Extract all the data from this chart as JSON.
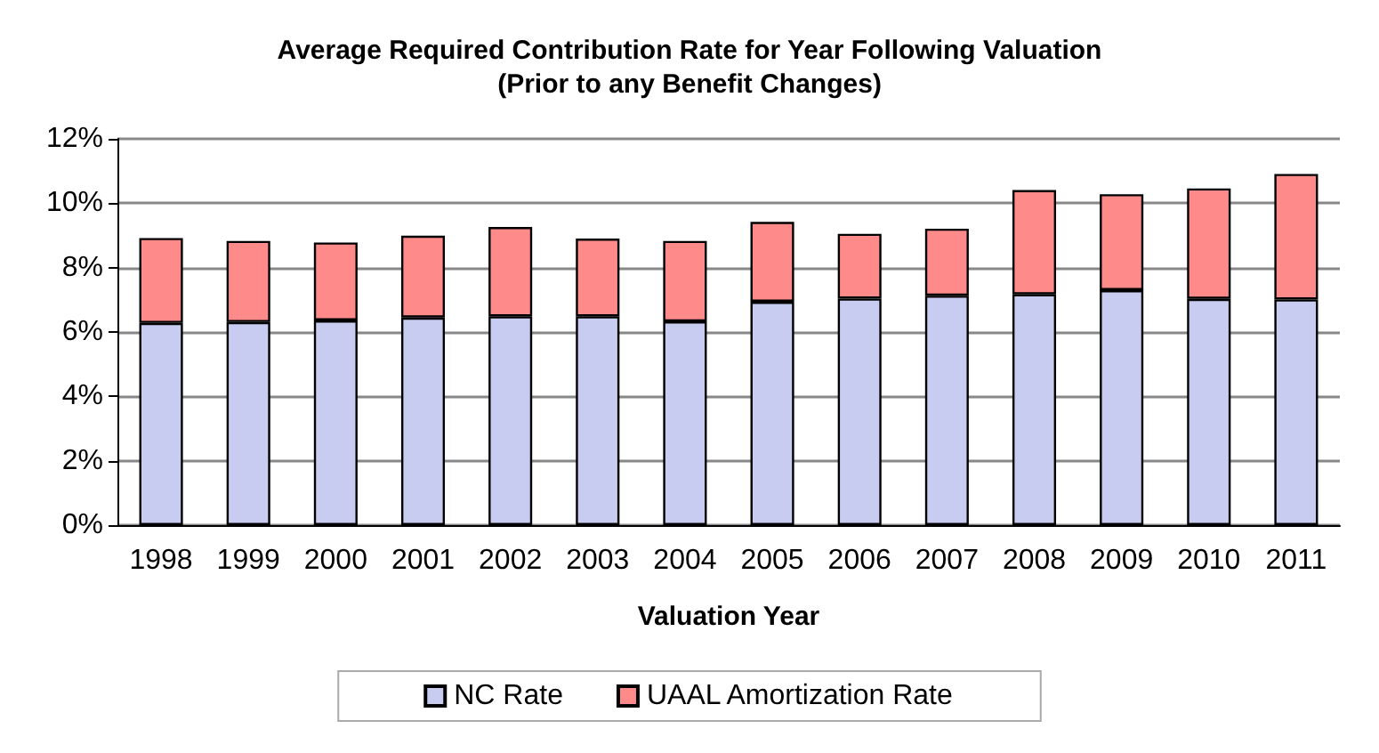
{
  "chart_data": {
    "type": "bar",
    "title": "Average Required Contribution Rate for Year Following Valuation\n(Prior to any Benefit Changes)",
    "xlabel": "Valuation Year",
    "categories": [
      "1998",
      "1999",
      "2000",
      "2001",
      "2002",
      "2003",
      "2004",
      "2005",
      "2006",
      "2007",
      "2008",
      "2009",
      "2010",
      "2011"
    ],
    "stacked": true,
    "series": [
      {
        "name": "NC Rate",
        "color": "#c8ccf0",
        "values": [
          6.28,
          6.31,
          6.36,
          6.45,
          6.49,
          6.49,
          6.33,
          6.94,
          7.04,
          7.13,
          7.17,
          7.3,
          7.03,
          7.01
        ]
      },
      {
        "name": "UAAL Amortization Rate",
        "color": "#ff8a8a",
        "values": [
          2.64,
          2.52,
          2.42,
          2.54,
          2.77,
          2.41,
          2.5,
          2.48,
          2.01,
          2.08,
          3.24,
          2.98,
          3.43,
          3.9
        ]
      }
    ],
    "ylim": [
      0,
      12
    ],
    "yticks": [
      {
        "value": 0,
        "label": "0%"
      },
      {
        "value": 2,
        "label": "2%"
      },
      {
        "value": 4,
        "label": "4%"
      },
      {
        "value": 6,
        "label": "6%"
      },
      {
        "value": 8,
        "label": "8%"
      },
      {
        "value": 10,
        "label": "10%"
      },
      {
        "value": 12,
        "label": "12%"
      }
    ],
    "grid": "y",
    "legend": "bottom"
  }
}
